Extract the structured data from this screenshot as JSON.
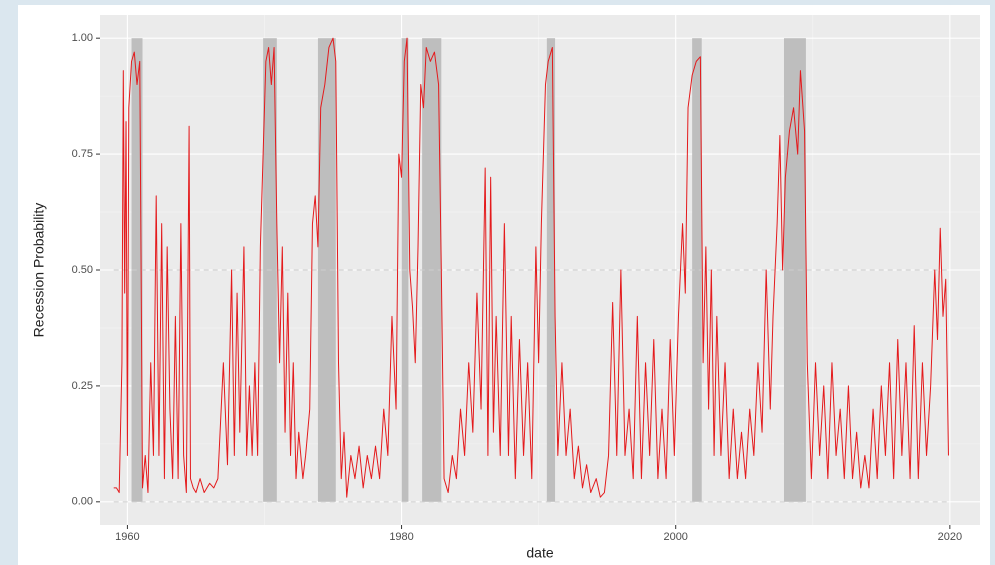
{
  "chart_data": {
    "type": "line",
    "xlabel": "date",
    "ylabel": "Recession Probability",
    "color": "#e41a1c",
    "recession_color": "#bebebe",
    "grid": true,
    "xlim": [
      1958,
      2022.2
    ],
    "ylim": [
      -0.05,
      1.05
    ],
    "xticks": [
      1960,
      1980,
      2000,
      2020
    ],
    "yticks": [
      {
        "value": 0,
        "label": "0.00"
      },
      {
        "value": 0.25,
        "label": "0.25"
      },
      {
        "value": 0.5,
        "label": "0.50"
      },
      {
        "value": 0.75,
        "label": "0.75"
      },
      {
        "value": 1,
        "label": "1.00"
      }
    ],
    "hlines": [
      0,
      0.5
    ],
    "recessions": [
      {
        "start": 1960.3,
        "end": 1961.1
      },
      {
        "start": 1969.9,
        "end": 1970.9
      },
      {
        "start": 1973.9,
        "end": 1975.2
      },
      {
        "start": 1980.0,
        "end": 1980.5
      },
      {
        "start": 1981.5,
        "end": 1982.9
      },
      {
        "start": 1990.6,
        "end": 1991.2
      },
      {
        "start": 2001.2,
        "end": 2001.9
      },
      {
        "start": 2007.9,
        "end": 2009.5
      }
    ],
    "x": [
      1959.0,
      1959.2,
      1959.4,
      1959.6,
      1959.7,
      1959.8,
      1959.9,
      1960.0,
      1960.1,
      1960.3,
      1960.5,
      1960.7,
      1960.9,
      1961.0,
      1961.1,
      1961.3,
      1961.5,
      1961.7,
      1961.9,
      1962.1,
      1962.3,
      1962.5,
      1962.7,
      1962.9,
      1963.1,
      1963.3,
      1963.5,
      1963.7,
      1963.9,
      1964.1,
      1964.3,
      1964.5,
      1964.6,
      1964.8,
      1965.0,
      1965.3,
      1965.6,
      1966.0,
      1966.3,
      1966.6,
      1967.0,
      1967.3,
      1967.6,
      1967.8,
      1968.0,
      1968.2,
      1968.5,
      1968.7,
      1968.9,
      1969.1,
      1969.3,
      1969.5,
      1969.7,
      1969.9,
      1970.1,
      1970.3,
      1970.5,
      1970.7,
      1970.9,
      1971.1,
      1971.3,
      1971.5,
      1971.7,
      1971.9,
      1972.1,
      1972.3,
      1972.5,
      1972.8,
      1973.0,
      1973.3,
      1973.5,
      1973.7,
      1973.9,
      1974.1,
      1974.4,
      1974.7,
      1975.0,
      1975.2,
      1975.4,
      1975.6,
      1975.8,
      1976.0,
      1976.3,
      1976.6,
      1976.9,
      1977.2,
      1977.5,
      1977.8,
      1978.1,
      1978.4,
      1978.7,
      1979.0,
      1979.3,
      1979.6,
      1979.8,
      1980.0,
      1980.2,
      1980.4,
      1980.6,
      1980.8,
      1981.0,
      1981.2,
      1981.4,
      1981.6,
      1981.8,
      1982.1,
      1982.4,
      1982.7,
      1982.9,
      1983.1,
      1983.4,
      1983.7,
      1984.0,
      1984.3,
      1984.6,
      1984.9,
      1985.2,
      1985.5,
      1985.8,
      1986.1,
      1986.3,
      1986.5,
      1986.7,
      1986.9,
      1987.2,
      1987.5,
      1987.8,
      1988.0,
      1988.3,
      1988.6,
      1988.9,
      1989.2,
      1989.5,
      1989.8,
      1990.0,
      1990.2,
      1990.5,
      1990.7,
      1991.0,
      1991.2,
      1991.4,
      1991.7,
      1992.0,
      1992.3,
      1992.6,
      1992.9,
      1993.2,
      1993.5,
      1993.8,
      1994.2,
      1994.5,
      1994.8,
      1995.1,
      1995.4,
      1995.7,
      1996.0,
      1996.3,
      1996.6,
      1996.9,
      1997.2,
      1997.5,
      1997.8,
      1998.1,
      1998.4,
      1998.7,
      1999.0,
      1999.3,
      1999.6,
      1999.9,
      2000.2,
      2000.5,
      2000.7,
      2000.9,
      2001.2,
      2001.5,
      2001.8,
      2002.0,
      2002.2,
      2002.4,
      2002.6,
      2002.8,
      2003.0,
      2003.3,
      2003.6,
      2003.9,
      2004.2,
      2004.5,
      2004.8,
      2005.1,
      2005.4,
      2005.7,
      2006.0,
      2006.3,
      2006.6,
      2006.9,
      2007.1,
      2007.4,
      2007.6,
      2007.8,
      2008.0,
      2008.3,
      2008.6,
      2008.9,
      2009.1,
      2009.4,
      2009.6,
      2009.9,
      2010.2,
      2010.5,
      2010.8,
      2011.1,
      2011.4,
      2011.7,
      2012.0,
      2012.3,
      2012.6,
      2012.9,
      2013.2,
      2013.5,
      2013.8,
      2014.1,
      2014.4,
      2014.7,
      2015.0,
      2015.3,
      2015.6,
      2015.9,
      2016.2,
      2016.5,
      2016.8,
      2017.1,
      2017.4,
      2017.7,
      2018.0,
      2018.3,
      2018.6,
      2018.9,
      2019.1,
      2019.3,
      2019.5,
      2019.7,
      2019.9
    ],
    "values": [
      0.03,
      0.03,
      0.02,
      0.3,
      0.93,
      0.45,
      0.82,
      0.1,
      0.85,
      0.95,
      0.97,
      0.9,
      0.95,
      0.5,
      0.03,
      0.1,
      0.02,
      0.3,
      0.1,
      0.66,
      0.1,
      0.6,
      0.05,
      0.55,
      0.2,
      0.05,
      0.4,
      0.05,
      0.6,
      0.1,
      0.02,
      0.81,
      0.05,
      0.03,
      0.02,
      0.05,
      0.02,
      0.04,
      0.03,
      0.05,
      0.3,
      0.08,
      0.5,
      0.1,
      0.45,
      0.15,
      0.55,
      0.1,
      0.25,
      0.1,
      0.3,
      0.1,
      0.55,
      0.75,
      0.95,
      0.98,
      0.9,
      0.98,
      0.6,
      0.3,
      0.55,
      0.15,
      0.45,
      0.1,
      0.3,
      0.05,
      0.15,
      0.05,
      0.1,
      0.2,
      0.6,
      0.66,
      0.55,
      0.85,
      0.9,
      0.98,
      1.0,
      0.95,
      0.3,
      0.05,
      0.15,
      0.01,
      0.1,
      0.05,
      0.12,
      0.03,
      0.1,
      0.05,
      0.12,
      0.05,
      0.2,
      0.1,
      0.4,
      0.2,
      0.75,
      0.7,
      0.95,
      1.0,
      0.5,
      0.42,
      0.3,
      0.55,
      0.9,
      0.85,
      0.98,
      0.95,
      0.97,
      0.9,
      0.5,
      0.05,
      0.02,
      0.1,
      0.05,
      0.2,
      0.1,
      0.3,
      0.15,
      0.45,
      0.2,
      0.72,
      0.1,
      0.7,
      0.15,
      0.4,
      0.1,
      0.6,
      0.1,
      0.4,
      0.05,
      0.35,
      0.1,
      0.3,
      0.05,
      0.55,
      0.3,
      0.6,
      0.9,
      0.95,
      0.98,
      0.4,
      0.1,
      0.3,
      0.1,
      0.2,
      0.05,
      0.12,
      0.03,
      0.08,
      0.02,
      0.05,
      0.01,
      0.02,
      0.1,
      0.43,
      0.1,
      0.5,
      0.1,
      0.2,
      0.05,
      0.4,
      0.05,
      0.3,
      0.1,
      0.35,
      0.05,
      0.2,
      0.05,
      0.35,
      0.1,
      0.4,
      0.6,
      0.45,
      0.85,
      0.92,
      0.95,
      0.96,
      0.3,
      0.55,
      0.2,
      0.5,
      0.1,
      0.4,
      0.1,
      0.3,
      0.05,
      0.2,
      0.05,
      0.15,
      0.05,
      0.2,
      0.1,
      0.3,
      0.15,
      0.5,
      0.2,
      0.4,
      0.6,
      0.79,
      0.5,
      0.7,
      0.8,
      0.85,
      0.75,
      0.93,
      0.8,
      0.3,
      0.05,
      0.3,
      0.1,
      0.25,
      0.05,
      0.3,
      0.1,
      0.2,
      0.05,
      0.25,
      0.05,
      0.15,
      0.03,
      0.1,
      0.03,
      0.2,
      0.05,
      0.25,
      0.1,
      0.3,
      0.05,
      0.35,
      0.1,
      0.3,
      0.05,
      0.38,
      0.05,
      0.3,
      0.1,
      0.25,
      0.5,
      0.35,
      0.59,
      0.4,
      0.48,
      0.1
    ]
  }
}
